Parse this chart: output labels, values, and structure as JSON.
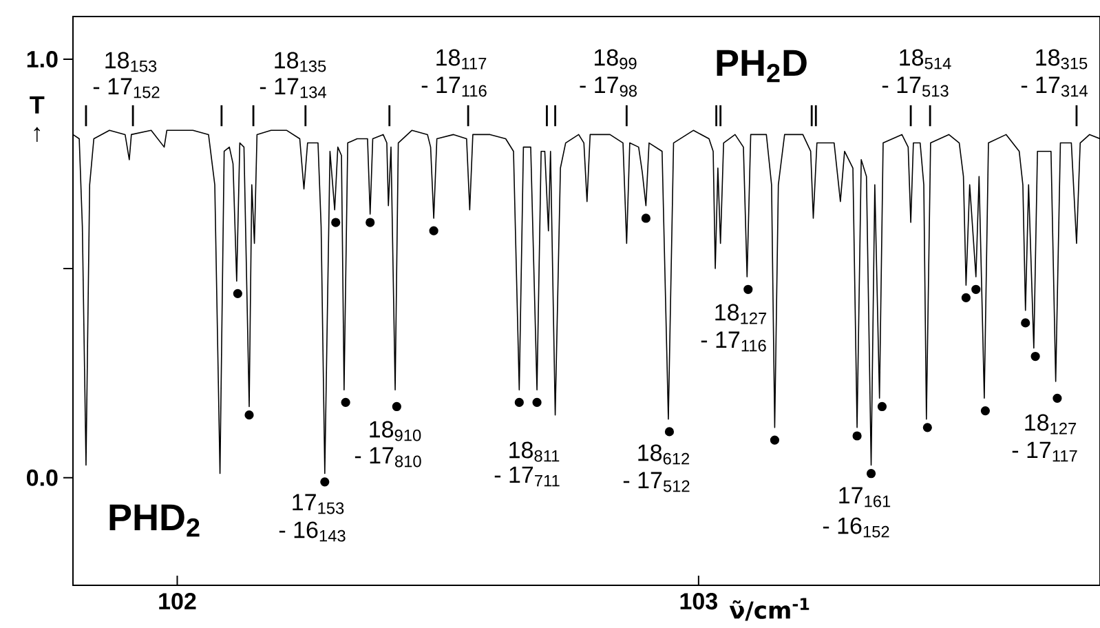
{
  "chart_data": {
    "type": "line",
    "xlabel": "ν̃/cm$^{-1}$",
    "ylabel": "T ↑",
    "xlim": [
      101.8,
      103.77
    ],
    "ylim": [
      -0.257,
      1.102
    ],
    "xticks": [
      102,
      103
    ],
    "yticks": [
      {
        "value": 1,
        "label": "1.0"
      },
      {
        "value": 0.5,
        "label": null
      },
      {
        "value": 0,
        "label": "0.0"
      }
    ],
    "grid": false,
    "series": [
      {
        "color": "#000000",
        "x": [
          101.8,
          101.812,
          101.818,
          101.825,
          101.832,
          101.84,
          101.87,
          101.9,
          101.908,
          101.912,
          101.95,
          101.975,
          101.98,
          102.03,
          102.06,
          102.072,
          102.082,
          102.09,
          102.1,
          102.107,
          102.114,
          102.12,
          102.128,
          102.138,
          102.143,
          102.148,
          102.153,
          102.18,
          102.21,
          102.235,
          102.243,
          102.25,
          102.27,
          102.276,
          102.283,
          102.293,
          102.302,
          102.308,
          102.315,
          102.32,
          102.327,
          102.345,
          102.365,
          102.37,
          102.375,
          102.395,
          102.402,
          102.405,
          102.41,
          102.418,
          102.424,
          102.45,
          102.48,
          102.486,
          102.492,
          102.498,
          102.53,
          102.555,
          102.561,
          102.567,
          102.6,
          102.63,
          102.645,
          102.656,
          102.664,
          102.678,
          102.69,
          102.698,
          102.705,
          102.712,
          102.716,
          102.725,
          102.735,
          102.745,
          102.77,
          102.78,
          102.786,
          102.792,
          102.83,
          102.855,
          102.862,
          102.868,
          102.885,
          102.892,
          102.899,
          102.905,
          102.93,
          102.942,
          102.952,
          102.99,
          103.02,
          103.028,
          103.032,
          103.037,
          103.042,
          103.048,
          103.07,
          103.086,
          103.093,
          103.1,
          103.13,
          103.14,
          103.146,
          103.153,
          103.165,
          103.2,
          103.215,
          103.22,
          103.227,
          103.26,
          103.272,
          103.28,
          103.296,
          103.304,
          103.312,
          103.322,
          103.331,
          103.338,
          103.347,
          103.354,
          103.39,
          103.402,
          103.407,
          103.412,
          103.425,
          103.432,
          103.437,
          103.445,
          103.48,
          103.5,
          103.508,
          103.513,
          103.52,
          103.532,
          103.538,
          103.548,
          103.556,
          103.59,
          103.615,
          103.622,
          103.627,
          103.633,
          103.643,
          103.65,
          103.676,
          103.685,
          103.694,
          103.715,
          103.725,
          103.732,
          103.75,
          103.77
        ],
        "values": [
          0.82,
          0.81,
          0.6,
          0.03,
          0.7,
          0.81,
          0.83,
          0.82,
          0.76,
          0.82,
          0.83,
          0.79,
          0.83,
          0.83,
          0.82,
          0.7,
          0.01,
          0.78,
          0.79,
          0.75,
          0.47,
          0.8,
          0.79,
          0.17,
          0.7,
          0.56,
          0.82,
          0.83,
          0.83,
          0.81,
          0.69,
          0.8,
          0.8,
          0.6,
          0.01,
          0.78,
          0.64,
          0.79,
          0.77,
          0.21,
          0.8,
          0.81,
          0.81,
          0.63,
          0.81,
          0.82,
          0.8,
          0.65,
          0.79,
          0.21,
          0.8,
          0.83,
          0.82,
          0.79,
          0.62,
          0.81,
          0.82,
          0.81,
          0.64,
          0.82,
          0.82,
          0.81,
          0.78,
          0.21,
          0.79,
          0.79,
          0.21,
          0.78,
          0.78,
          0.59,
          0.78,
          0.15,
          0.74,
          0.8,
          0.82,
          0.8,
          0.66,
          0.82,
          0.82,
          0.8,
          0.56,
          0.8,
          0.79,
          0.73,
          0.65,
          0.8,
          0.78,
          0.14,
          0.8,
          0.83,
          0.81,
          0.78,
          0.5,
          0.74,
          0.56,
          0.8,
          0.82,
          0.79,
          0.48,
          0.82,
          0.82,
          0.7,
          0.12,
          0.7,
          0.82,
          0.82,
          0.78,
          0.62,
          0.8,
          0.8,
          0.66,
          0.78,
          0.74,
          0.12,
          0.76,
          0.72,
          0.03,
          0.7,
          0.19,
          0.8,
          0.82,
          0.79,
          0.61,
          0.8,
          0.8,
          0.7,
          0.14,
          0.8,
          0.82,
          0.8,
          0.72,
          0.46,
          0.7,
          0.48,
          0.72,
          0.19,
          0.8,
          0.82,
          0.78,
          0.7,
          0.4,
          0.7,
          0.31,
          0.78,
          0.78,
          0.23,
          0.8,
          0.8,
          0.56,
          0.8,
          0.82,
          0.81
        ]
      },
      {
        "type": "scatter",
        "color": "#000000",
        "marker": "circle",
        "x": [
          102.116,
          102.138,
          102.283,
          102.304,
          102.323,
          102.37,
          102.421,
          102.492,
          102.656,
          102.69,
          102.899,
          102.944,
          103.095,
          103.146,
          103.304,
          103.331,
          103.352,
          103.439,
          103.513,
          103.532,
          103.55,
          103.627,
          103.646,
          103.688
        ],
        "values": [
          0.44,
          0.15,
          -0.01,
          0.61,
          0.18,
          0.61,
          0.17,
          0.59,
          0.18,
          0.18,
          0.62,
          0.11,
          0.45,
          0.09,
          0.1,
          0.01,
          0.17,
          0.12,
          0.43,
          0.45,
          0.16,
          0.37,
          0.29,
          0.19
        ]
      },
      {
        "type": "bar",
        "color": "#000000",
        "x": [
          101.825,
          101.915,
          102.085,
          102.146,
          102.246,
          102.407,
          102.558,
          102.709,
          102.725,
          102.862,
          103.034,
          103.042,
          103.217,
          103.225,
          103.407,
          103.444,
          103.725
        ],
        "base": [
          0.84,
          0.84,
          0.84,
          0.84,
          0.84,
          0.84,
          0.84,
          0.84,
          0.84,
          0.84,
          0.84,
          0.84,
          0.84,
          0.84,
          0.84,
          0.84,
          0.84
        ],
        "values": [
          0.05,
          0.05,
          0.05,
          0.05,
          0.05,
          0.05,
          0.05,
          0.05,
          0.05,
          0.05,
          0.05,
          0.05,
          0.05,
          0.05,
          0.05,
          0.05,
          0.05
        ]
      }
    ],
    "annotations": [
      "18$_{153}$",
      "- 17$_{152}$",
      "18$_{135}$",
      "- 17$_{134}$",
      "18$_{117}$",
      "- 17$_{116}$",
      "18$_{99}$",
      "- 17$_{98}$",
      "18$_{514}$",
      "- 17$_{513}$",
      "18$_{315}$",
      "- 17$_{314}$",
      "18$_{910}$",
      "- 17$_{810}$",
      "17$_{153}$",
      "- 16$_{143}$",
      "18$_{811}$",
      "- 17$_{711}$",
      "18$_{612}$",
      "- 17$_{512}$",
      "18$_{127}$",
      "- 17$_{116}$",
      "17$_{161}$",
      "- 16$_{152}$",
      "18$_{127}$",
      "- 17$_{117}$",
      "PH$_{2}$D",
      "PHD$_{2}$"
    ]
  }
}
